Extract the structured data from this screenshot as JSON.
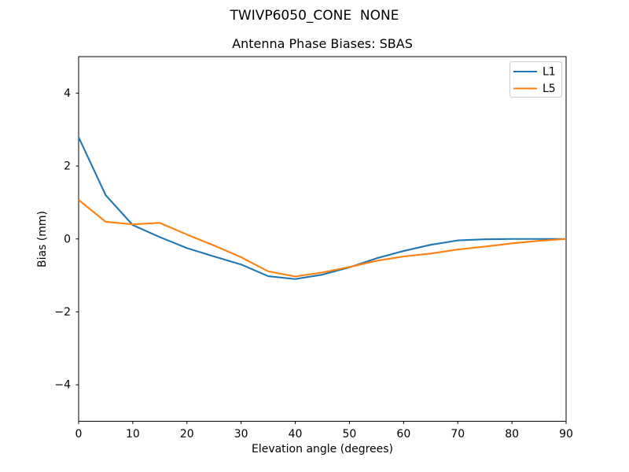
{
  "figure": {
    "suptitle": "TWIVP6050_CONE  NONE",
    "background": "#ffffff",
    "spine_color": "#000000",
    "legend": {
      "border_color": "#cccccc",
      "background": "#ffffff",
      "entries": [
        "L1",
        "L5"
      ]
    }
  },
  "chart_data": {
    "type": "line",
    "title": "Antenna Phase Biases: SBAS",
    "xlabel": "Elevation angle (degrees)",
    "ylabel": "Bias (mm)",
    "xlim": [
      0,
      90
    ],
    "ylim": [
      -5,
      5
    ],
    "xticks": [
      0,
      10,
      20,
      30,
      40,
      50,
      60,
      70,
      80,
      90
    ],
    "yticks": [
      -4,
      -2,
      0,
      2,
      4
    ],
    "grid": false,
    "legend_position": "upper right",
    "x": [
      0,
      5,
      10,
      15,
      20,
      25,
      30,
      35,
      40,
      45,
      50,
      55,
      60,
      65,
      70,
      75,
      80,
      85,
      90
    ],
    "series": [
      {
        "name": "L1",
        "color": "#1f77b4",
        "values": [
          2.79,
          1.2,
          0.38,
          0.05,
          -0.25,
          -0.48,
          -0.7,
          -1.02,
          -1.1,
          -0.98,
          -0.78,
          -0.53,
          -0.33,
          -0.16,
          -0.04,
          -0.01,
          0.0,
          0.0,
          0.0
        ]
      },
      {
        "name": "L5",
        "color": "#ff7f0e",
        "values": [
          1.07,
          0.47,
          0.4,
          0.44,
          0.12,
          -0.18,
          -0.5,
          -0.89,
          -1.03,
          -0.92,
          -0.77,
          -0.6,
          -0.48,
          -0.4,
          -0.29,
          -0.21,
          -0.12,
          -0.05,
          0.0
        ]
      }
    ]
  }
}
